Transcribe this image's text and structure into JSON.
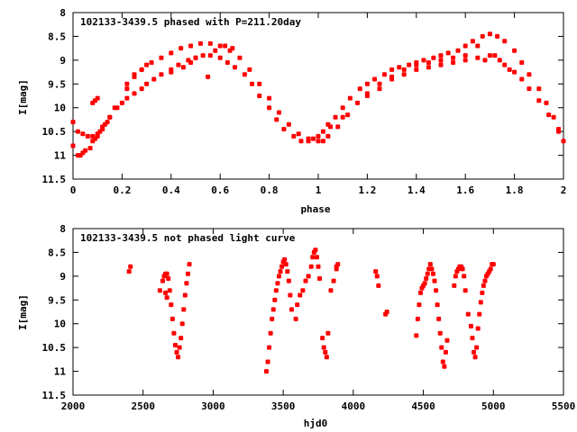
{
  "chart_data": [
    {
      "type": "scatter",
      "title": "102133-3439.5 phased with P=211.20day",
      "xlabel": "phase",
      "ylabel": "I[mag]",
      "xlim": [
        0,
        2
      ],
      "ylim": [
        11.5,
        8
      ],
      "y_inverted": true,
      "xticks": [
        "0",
        "0.2",
        "0.4",
        "0.6",
        "0.8",
        "1",
        "1.2",
        "1.4",
        "1.6",
        "1.8",
        "2"
      ],
      "yticks": [
        "8",
        "8.5",
        "9",
        "9.5",
        "10",
        "10.5",
        "11",
        "11.5"
      ],
      "grid": false,
      "color": "#ff0000",
      "series": [
        {
          "x": [
            0.0,
            0.02,
            0.03,
            0.04,
            0.05,
            0.07,
            0.08,
            0.09,
            0.1,
            0.11,
            0.12,
            0.13,
            0.14,
            0.15,
            0.17,
            0.2,
            0.22,
            0.25,
            0.28,
            0.3,
            0.33,
            0.36,
            0.4,
            0.43,
            0.47,
            0.5,
            0.53,
            0.56,
            0.6,
            0.63,
            0.66,
            0.7,
            0.73,
            0.76,
            0.8,
            0.83,
            0.86,
            0.9,
            0.93,
            0.96,
            0.98,
            1.0,
            1.02,
            1.04,
            1.07,
            1.1,
            1.13,
            1.17,
            1.2,
            1.23,
            1.27,
            1.3,
            1.33,
            1.37,
            1.4,
            1.43,
            1.47,
            1.5,
            1.53,
            1.57,
            1.6,
            1.63,
            1.67,
            1.7,
            1.73,
            1.76,
            1.8,
            1.83,
            1.86,
            1.9,
            1.93,
            1.96,
            1.98,
            2.0
          ],
          "y": [
            10.8,
            11.0,
            11.0,
            10.95,
            10.9,
            10.85,
            10.7,
            10.65,
            10.6,
            10.5,
            10.4,
            10.35,
            10.3,
            10.2,
            10.0,
            9.9,
            9.8,
            9.7,
            9.6,
            9.5,
            9.4,
            9.3,
            9.2,
            9.1,
            9.0,
            8.95,
            8.9,
            8.9,
            8.95,
            9.05,
            9.15,
            9.3,
            9.5,
            9.75,
            10.0,
            10.25,
            10.45,
            10.6,
            10.7,
            10.7,
            10.65,
            10.6,
            10.5,
            10.35,
            10.2,
            10.0,
            9.8,
            9.6,
            9.5,
            9.4,
            9.3,
            9.2,
            9.15,
            9.1,
            9.05,
            9.0,
            8.95,
            8.9,
            8.85,
            8.8,
            8.7,
            8.6,
            8.5,
            8.45,
            8.5,
            8.6,
            8.8,
            9.05,
            9.3,
            9.6,
            9.9,
            10.2,
            10.45,
            10.7
          ]
        },
        {
          "x": [
            0.0,
            0.02,
            0.04,
            0.06,
            0.08,
            0.1,
            0.12,
            0.15,
            0.18,
            0.22,
            0.25,
            0.28,
            0.32,
            0.36,
            0.4,
            0.44,
            0.48,
            0.52,
            0.56,
            0.6,
            0.64,
            0.68,
            0.72,
            0.76,
            0.8,
            0.84,
            0.88,
            0.92,
            0.96,
            1.0,
            1.04,
            1.08,
            1.12,
            1.16,
            1.2,
            1.25,
            1.3,
            1.35,
            1.4,
            1.45,
            1.5,
            1.55,
            1.6,
            1.65,
            1.68,
            1.7,
            1.72,
            1.74,
            1.76,
            1.78,
            1.8,
            1.83,
            1.86,
            1.9,
            1.94,
            1.98
          ],
          "y": [
            10.3,
            10.5,
            10.55,
            10.6,
            10.6,
            10.55,
            10.45,
            10.2,
            10.0,
            9.6,
            9.3,
            9.2,
            9.05,
            8.95,
            8.85,
            8.75,
            8.7,
            8.65,
            8.65,
            8.7,
            8.8,
            8.95,
            9.2,
            9.5,
            9.8,
            10.1,
            10.35,
            10.55,
            10.65,
            10.7,
            10.6,
            10.4,
            10.15,
            9.9,
            9.7,
            9.5,
            9.35,
            9.2,
            9.1,
            9.05,
            9.0,
            8.95,
            8.9,
            8.95,
            9.0,
            8.9,
            8.9,
            9.0,
            9.1,
            9.2,
            9.25,
            9.4,
            9.6,
            9.85,
            10.15,
            10.5
          ]
        },
        {
          "x": [
            0.08,
            0.09,
            0.1,
            0.22,
            0.25,
            0.28,
            0.3,
            0.4,
            0.45,
            0.48,
            0.5,
            0.55,
            0.58,
            0.62,
            0.65,
            1.02,
            1.05,
            1.1,
            1.2,
            1.25,
            1.3,
            1.35,
            1.4,
            1.45,
            1.5,
            1.55,
            1.6,
            1.65
          ],
          "y": [
            9.9,
            9.85,
            9.8,
            9.5,
            9.35,
            9.2,
            9.1,
            9.25,
            9.15,
            9.05,
            8.95,
            9.35,
            8.8,
            8.7,
            8.75,
            10.7,
            10.4,
            10.2,
            9.75,
            9.6,
            9.4,
            9.3,
            9.2,
            9.15,
            9.1,
            9.05,
            9.0,
            8.7
          ]
        }
      ]
    },
    {
      "type": "scatter",
      "title": "102133-3439.5 not phased light curve",
      "xlabel": "hjd0",
      "ylabel": "I[mag]",
      "xlim": [
        2000,
        5500
      ],
      "ylim": [
        11.5,
        8
      ],
      "y_inverted": true,
      "xticks": [
        "2000",
        "2500",
        "3000",
        "3500",
        "4000",
        "4500",
        "5000",
        "5500"
      ],
      "yticks": [
        "8",
        "8.5",
        "9",
        "9.5",
        "10",
        "10.5",
        "11",
        "11.5"
      ],
      "grid": false,
      "color": "#ff0000",
      "series": [
        {
          "x": [
            2400,
            2410,
            2620,
            2640,
            2650,
            2660,
            2670,
            2680,
            2690,
            2700,
            2710,
            2720,
            2730,
            2740,
            2750,
            2760,
            2770,
            2780,
            2790,
            2800,
            2810,
            2820,
            2830,
            2660,
            2670
          ],
          "y": [
            8.9,
            8.8,
            9.3,
            9.1,
            9.0,
            8.95,
            8.95,
            9.05,
            9.3,
            9.6,
            9.9,
            10.2,
            10.45,
            10.6,
            10.7,
            10.5,
            10.3,
            10.0,
            9.7,
            9.4,
            9.15,
            8.95,
            8.75,
            9.35,
            9.45
          ]
        },
        {
          "x": [
            3380,
            3390,
            3400,
            3410,
            3420,
            3430,
            3440,
            3450,
            3460,
            3470,
            3480,
            3490,
            3500,
            3510,
            3520,
            3530,
            3540,
            3550,
            3560,
            3590,
            3600,
            3620,
            3640,
            3660,
            3680,
            3700,
            3710,
            3720,
            3730,
            3740,
            3750,
            3760,
            3780,
            3790,
            3800,
            3810,
            3820,
            3840,
            3860,
            3880
          ],
          "y": [
            11.0,
            10.8,
            10.5,
            10.2,
            9.9,
            9.7,
            9.5,
            9.3,
            9.15,
            9.0,
            8.9,
            8.8,
            8.7,
            8.65,
            8.75,
            8.9,
            9.1,
            9.4,
            9.7,
            9.9,
            9.6,
            9.4,
            9.3,
            9.1,
            9.0,
            8.8,
            8.6,
            8.5,
            8.45,
            8.6,
            8.8,
            9.05,
            10.3,
            10.5,
            10.6,
            10.7,
            10.2,
            9.3,
            9.1,
            8.8
          ],
          "extra_x": [
            3880,
            3890
          ],
          "extra_y": [
            8.85,
            8.75
          ]
        },
        {
          "x": [
            4160,
            4170,
            4180,
            4230,
            4240,
            4450,
            4460,
            4470,
            4480,
            4490,
            4500,
            4510,
            4520,
            4530,
            4540,
            4550,
            4560,
            4570,
            4580,
            4590,
            4600,
            4610,
            4620,
            4630,
            4640,
            4650,
            4660,
            4670
          ],
          "y": [
            8.9,
            9.0,
            9.2,
            9.8,
            9.75,
            10.25,
            9.9,
            9.6,
            9.35,
            9.25,
            9.2,
            9.15,
            9.05,
            8.95,
            8.85,
            8.75,
            8.85,
            8.95,
            9.1,
            9.3,
            9.6,
            9.9,
            10.2,
            10.5,
            10.8,
            10.9,
            10.6,
            10.35
          ]
        },
        {
          "x": [
            4720,
            4730,
            4740,
            4750,
            4760,
            4770,
            4780,
            4790,
            4800,
            4820,
            4840,
            4850,
            4860,
            4870,
            4880,
            4890,
            4900,
            4910,
            4920,
            4930,
            4940,
            4950,
            4960,
            4970,
            4980,
            4990,
            5000
          ],
          "y": [
            9.2,
            9.0,
            8.9,
            8.85,
            8.8,
            8.8,
            8.85,
            9.0,
            9.3,
            9.8,
            10.05,
            10.3,
            10.6,
            10.7,
            10.5,
            10.1,
            9.8,
            9.55,
            9.35,
            9.2,
            9.1,
            9.0,
            8.95,
            8.9,
            8.85,
            8.75,
            8.75
          ]
        }
      ]
    }
  ]
}
